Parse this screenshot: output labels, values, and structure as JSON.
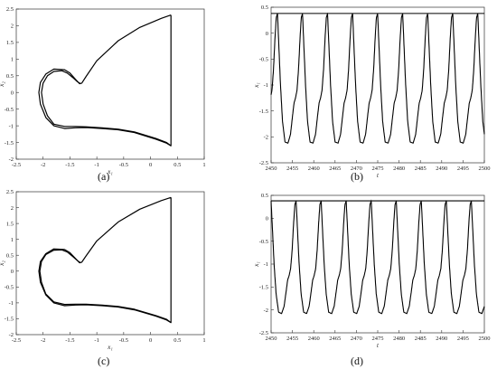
{
  "panels": [
    {
      "caption": "(a)"
    },
    {
      "caption": "(b)"
    },
    {
      "caption": "(c)"
    },
    {
      "caption": "(d)"
    }
  ],
  "chart_data": [
    {
      "id": "a",
      "type": "line",
      "title": "",
      "xlabel": "x₁",
      "ylabel": "x₂",
      "xlim": [
        -2.5,
        1
      ],
      "ylim": [
        -2,
        2.5
      ],
      "xticks": [
        "-2.5",
        "-2",
        "-1.5",
        "-1",
        "-0.5",
        "0",
        "0.5",
        "1"
      ],
      "yticks": [
        "-2",
        "-1.5",
        "-1",
        "-0.5",
        "0",
        "0.5",
        "1",
        "1.5",
        "2",
        "2.5"
      ],
      "series": [
        {
          "x": [
            0.38,
            0.38,
            0.3,
            0.1,
            -0.3,
            -0.6,
            -0.9,
            -1.2,
            -1.4,
            -1.6,
            -1.8,
            -1.95,
            -2.05,
            -2.08,
            -2.05,
            -1.95,
            -1.8,
            -1.6,
            -1.5,
            -1.4,
            -1.32,
            -1.28,
            -1.2,
            -1.0,
            -0.6,
            -0.2,
            0.2,
            0.38
          ],
          "y": [
            2.32,
            -1.6,
            -1.52,
            -1.4,
            -1.2,
            -1.12,
            -1.08,
            -1.05,
            -1.06,
            -1.08,
            -1.0,
            -0.75,
            -0.35,
            0.0,
            0.3,
            0.55,
            0.7,
            0.68,
            0.58,
            0.4,
            0.26,
            0.28,
            0.48,
            0.95,
            1.55,
            1.95,
            2.22,
            2.32
          ]
        },
        {
          "x": [
            0.38,
            0.3,
            0.1,
            -0.3,
            -0.6,
            -0.9,
            -1.2,
            -1.4,
            -1.6,
            -1.8,
            -1.92,
            -2.0,
            -2.03,
            -2.0,
            -1.92,
            -1.8,
            -1.65,
            -1.55,
            -1.45,
            -1.36,
            -1.3
          ],
          "y": [
            -1.6,
            -1.5,
            -1.38,
            -1.18,
            -1.1,
            -1.06,
            -1.03,
            -1.02,
            -1.02,
            -0.95,
            -0.7,
            -0.35,
            0.0,
            0.28,
            0.5,
            0.63,
            0.65,
            0.58,
            0.45,
            0.32,
            0.26
          ]
        }
      ]
    },
    {
      "id": "b",
      "type": "line",
      "title": "",
      "xlabel": "t",
      "ylabel": "x₁",
      "xlim": [
        2450,
        2500
      ],
      "ylim": [
        -2.5,
        0.5
      ],
      "xticks": [
        "2450",
        "2455",
        "2460",
        "2465",
        "2470",
        "2475",
        "2480",
        "2485",
        "2490",
        "2495",
        "2500"
      ],
      "yticks": [
        "-2.5",
        "-2",
        "-1.5",
        "-1",
        "-0.5",
        "0",
        "0.5"
      ],
      "period": 5.87,
      "phase": 2451.5,
      "waveform": {
        "phase": [
          0,
          0.04,
          0.1,
          0.18,
          0.28,
          0.38,
          0.48,
          0.58,
          0.66,
          0.72,
          0.78,
          0.84,
          0.9,
          0.95,
          1.0
        ],
        "value": [
          0.38,
          0.38,
          0.38,
          0.38,
          0.38,
          0.38,
          0.38,
          0.38,
          0.38,
          0.38,
          0.38,
          0.38,
          0.38,
          0.38,
          0.38
        ]
      },
      "shape": {
        "phase": [
          0,
          0.05,
          0.12,
          0.2,
          0.3,
          0.42,
          0.52,
          0.6,
          0.66,
          0.72,
          0.78,
          0.84,
          0.9,
          0.95,
          1.0
        ],
        "value": [
          0.38,
          -0.2,
          -1.0,
          -1.7,
          -2.1,
          -2.12,
          -1.95,
          -1.6,
          -1.35,
          -1.25,
          -1.1,
          -0.7,
          -0.1,
          0.3,
          0.38
        ]
      }
    },
    {
      "id": "c",
      "type": "line",
      "title": "",
      "xlabel": "x₁",
      "ylabel": "x₂",
      "xlim": [
        -2.5,
        1
      ],
      "ylim": [
        -2,
        2.5
      ],
      "xticks": [
        "-2.5",
        "-2",
        "-1.5",
        "-1",
        "-0.5",
        "0",
        "0.5",
        "1"
      ],
      "yticks": [
        "-2",
        "-1.5",
        "-1",
        "-0.5",
        "0",
        "0.5",
        "1",
        "1.5",
        "2",
        "2.5"
      ],
      "series": [
        {
          "x": [
            0.38,
            0.38,
            0.3,
            0.1,
            -0.3,
            -0.6,
            -0.9,
            -1.2,
            -1.4,
            -1.6,
            -1.8,
            -1.95,
            -2.05,
            -2.08,
            -2.05,
            -1.95,
            -1.8,
            -1.6,
            -1.5,
            -1.4,
            -1.32,
            -1.28,
            -1.2,
            -1.0,
            -0.6,
            -0.2,
            0.2,
            0.38
          ],
          "y": [
            2.32,
            -1.62,
            -1.54,
            -1.42,
            -1.22,
            -1.13,
            -1.09,
            -1.06,
            -1.07,
            -1.09,
            -1.0,
            -0.75,
            -0.35,
            0.0,
            0.3,
            0.55,
            0.7,
            0.68,
            0.58,
            0.4,
            0.26,
            0.28,
            0.48,
            0.95,
            1.55,
            1.95,
            2.22,
            2.32
          ]
        },
        {
          "x": [
            0.38,
            0.3,
            0.1,
            -0.3,
            -0.6,
            -0.9,
            -1.2,
            -1.4,
            -1.6,
            -1.8,
            -1.95,
            -2.03,
            -2.06,
            -2.03,
            -1.95,
            -1.8,
            -1.65,
            -1.55,
            -1.45,
            -1.36,
            -1.3
          ],
          "y": [
            -1.62,
            -1.52,
            -1.4,
            -1.2,
            -1.11,
            -1.07,
            -1.04,
            -1.04,
            -1.05,
            -0.97,
            -0.72,
            -0.35,
            0.0,
            0.3,
            0.52,
            0.66,
            0.67,
            0.6,
            0.46,
            0.33,
            0.26
          ]
        }
      ]
    },
    {
      "id": "d",
      "type": "line",
      "title": "",
      "xlabel": "t",
      "ylabel": "x₁",
      "xlim": [
        2450,
        2500
      ],
      "ylim": [
        -2.5,
        0.5
      ],
      "xticks": [
        "2450",
        "2455",
        "2460",
        "2465",
        "2470",
        "2475",
        "2480",
        "2485",
        "2490",
        "2495",
        "2500"
      ],
      "yticks": [
        "-2.5",
        "-2",
        "-1.5",
        "-1",
        "-0.5",
        "0",
        "0.5"
      ],
      "period": 5.87,
      "phase": 2450.0,
      "shape": {
        "phase": [
          0,
          0.05,
          0.12,
          0.2,
          0.3,
          0.42,
          0.52,
          0.6,
          0.66,
          0.72,
          0.78,
          0.84,
          0.9,
          0.95,
          1.0
        ],
        "value": [
          0.38,
          -0.2,
          -1.0,
          -1.65,
          -2.05,
          -2.08,
          -1.92,
          -1.6,
          -1.35,
          -1.25,
          -1.1,
          -0.7,
          -0.1,
          0.3,
          0.38
        ]
      }
    }
  ]
}
